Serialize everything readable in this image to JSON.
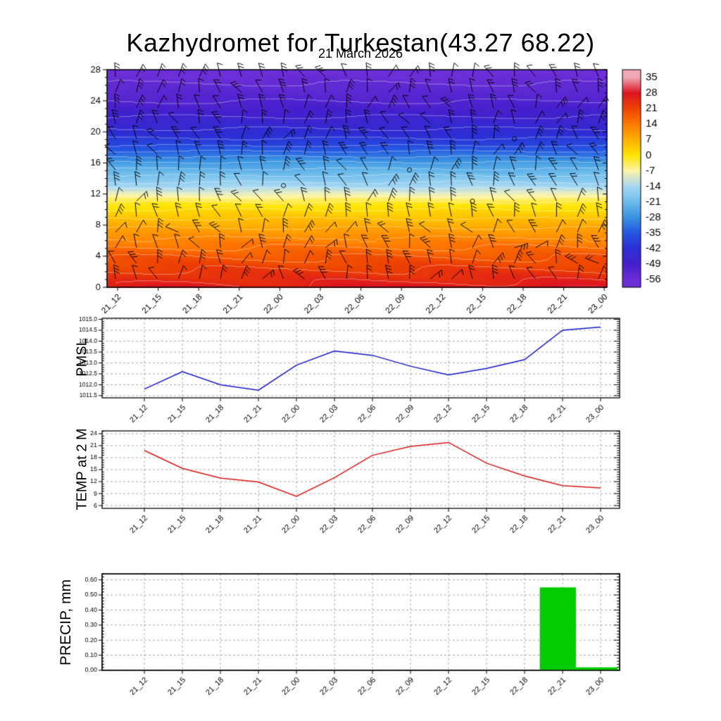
{
  "title": "Kazhydromet for Turkestan(43.27 68.22)",
  "subtitle": "21 March 2026",
  "x_categories": [
    "21_12",
    "21_15",
    "21_18",
    "21_21",
    "22_00",
    "22_03",
    "22_06",
    "22_09",
    "22_12",
    "22_15",
    "22_18",
    "22_21",
    "23_00"
  ],
  "chart_data": [
    {
      "name": "upper-air-temperature-wind-profile",
      "type": "heatmap",
      "ylabel": "",
      "y_ticks": [
        0,
        4,
        8,
        12,
        16,
        20,
        24,
        28
      ],
      "ylim": [
        0,
        28
      ],
      "colorbar_levels": [
        35,
        28,
        21,
        14,
        7,
        0,
        -7,
        -14,
        -21,
        -28,
        -35,
        -42,
        -49,
        -56
      ],
      "colorbar_colors": [
        "#f0a8b4",
        "#dc1420",
        "#ee4400",
        "#ff7a00",
        "#ffb000",
        "#ffe400",
        "#fcf4a8",
        "#a8d8f2",
        "#6cbcec",
        "#3a92e0",
        "#2458e2",
        "#2b2ed4",
        "#4520cc",
        "#6c2ed6"
      ],
      "height_temperature_profile": [
        [
          0,
          25.5
        ],
        [
          2,
          22.5
        ],
        [
          4,
          18.5
        ],
        [
          6,
          13
        ],
        [
          8,
          7.5
        ],
        [
          10,
          1.5
        ],
        [
          11,
          -2
        ],
        [
          12,
          -8
        ],
        [
          13,
          -14
        ],
        [
          14,
          -18
        ],
        [
          16,
          -26
        ],
        [
          17.6,
          -34
        ],
        [
          18.4,
          -38
        ],
        [
          20,
          -43
        ],
        [
          22,
          -47.5
        ],
        [
          24,
          -51
        ],
        [
          26,
          -54
        ],
        [
          28,
          -57
        ]
      ],
      "wind_barbs": {
        "rows": 14,
        "columns": 24,
        "color": "#000000"
      }
    },
    {
      "name": "pmsl",
      "type": "line",
      "ylabel": "PMSL",
      "color": "#1515cc",
      "values": [
        1011.8,
        1012.6,
        1012.0,
        1011.75,
        1012.9,
        1013.55,
        1013.35,
        1012.85,
        1012.45,
        1012.75,
        1013.15,
        1014.5,
        1014.65
      ],
      "y_ticks": [
        1011.5,
        1012.0,
        1012.5,
        1013.0,
        1013.5,
        1014.0,
        1014.5,
        1015.0
      ],
      "y_tick_labels": [
        "1011.5",
        "1012.0",
        "1012.5",
        "1013.0",
        "1013.5",
        "1014.0",
        "1014.5",
        "1015.0"
      ],
      "ylim": [
        1011.4,
        1015.05
      ]
    },
    {
      "name": "temp-at-2m",
      "type": "line",
      "ylabel": "TEMP at 2 M",
      "color": "#dd1515",
      "values": [
        19.8,
        15.3,
        12.9,
        11.9,
        8.3,
        13.0,
        18.6,
        20.8,
        21.8,
        16.6,
        13.4,
        11.0,
        10.4
      ],
      "y_ticks": [
        6,
        9,
        12,
        15,
        18,
        21,
        24
      ],
      "y_tick_labels": [
        "6",
        "9",
        "12",
        "15",
        "18",
        "21",
        "24"
      ],
      "ylim": [
        5.3,
        24.7
      ]
    },
    {
      "name": "precip",
      "type": "bar",
      "ylabel": "PRECIP, mm",
      "color": "#00cc00",
      "bars": [
        {
          "from": 10.4,
          "to": 11.35,
          "value": 0.55
        },
        {
          "from": 11.35,
          "to": 12.45,
          "value": 0.02
        }
      ],
      "y_ticks": [
        0.0,
        0.1,
        0.2,
        0.3,
        0.4,
        0.5,
        0.6
      ],
      "y_tick_labels": [
        "0.00",
        "0.10",
        "0.20",
        "0.30",
        "0.40",
        "0.50",
        "0.60"
      ],
      "ylim": [
        0,
        0.64
      ]
    }
  ]
}
